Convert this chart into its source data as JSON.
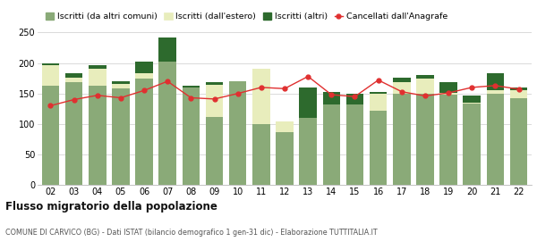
{
  "years": [
    "02",
    "03",
    "04",
    "05",
    "06",
    "07",
    "08",
    "09",
    "10",
    "11",
    "12",
    "13",
    "14",
    "15",
    "16",
    "17",
    "18",
    "19",
    "20",
    "21",
    "22"
  ],
  "iscritti_comuni": [
    163,
    168,
    163,
    158,
    175,
    202,
    160,
    112,
    170,
    100,
    86,
    110,
    132,
    132,
    122,
    150,
    150,
    148,
    133,
    150,
    143
  ],
  "iscritti_estero": [
    33,
    8,
    28,
    8,
    8,
    0,
    0,
    52,
    0,
    90,
    18,
    0,
    0,
    0,
    28,
    18,
    25,
    3,
    2,
    5,
    12
  ],
  "iscritti_altri": [
    4,
    7,
    5,
    4,
    20,
    40,
    3,
    5,
    0,
    0,
    0,
    50,
    20,
    18,
    3,
    8,
    5,
    18,
    12,
    28,
    5
  ],
  "cancellati": [
    130,
    140,
    147,
    143,
    155,
    170,
    143,
    141,
    150,
    160,
    158,
    178,
    148,
    145,
    172,
    153,
    146,
    151,
    160,
    163,
    157
  ],
  "color_comuni": "#8aaa78",
  "color_estero": "#e8edbc",
  "color_altri": "#2d6a2d",
  "color_cancellati": "#e03030",
  "ylim": [
    0,
    250
  ],
  "yticks": [
    0,
    50,
    100,
    150,
    200,
    250
  ],
  "title": "Flusso migratorio della popolazione",
  "subtitle": "COMUNE DI CARVICO (BG) - Dati ISTAT (bilancio demografico 1 gen-31 dic) - Elaborazione TUTTITALIA.IT",
  "legend_labels": [
    "Iscritti (da altri comuni)",
    "Iscritti (dall'estero)",
    "Iscritti (altri)",
    "Cancellati dall'Anagrafe"
  ],
  "bg_color": "#ffffff",
  "grid_color": "#cccccc"
}
